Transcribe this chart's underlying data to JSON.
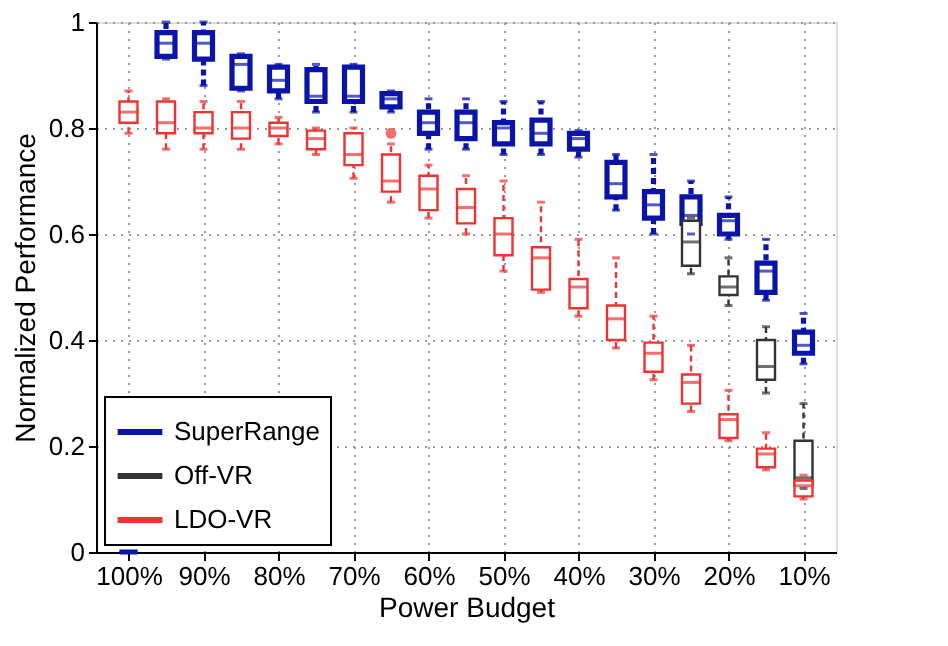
{
  "chart_data": {
    "type": "box",
    "xlabel": "Power Budget",
    "ylabel": "Normalized Performance",
    "categories": [
      "100%",
      null,
      "90%",
      null,
      "80%",
      null,
      "70%",
      null,
      "60%",
      null,
      "50%",
      null,
      "40%",
      null,
      "30%",
      null,
      "20%",
      null,
      "10%"
    ],
    "ylim": [
      0,
      1
    ],
    "yticks": [
      0,
      0.2,
      0.4,
      0.6,
      0.8,
      1
    ],
    "grid": true,
    "legend": "bottom left",
    "series": [
      {
        "name": "SuperRange",
        "color": "#0a14a8",
        "boxes": [
          {
            "low": 0,
            "q1": 0,
            "median": 0,
            "q3": 0,
            "high": 0
          },
          {
            "low": 0.93,
            "q1": 0.935,
            "median": 0.96,
            "q3": 0.98,
            "high": 1.0
          },
          {
            "low": 0.88,
            "q1": 0.93,
            "median": 0.96,
            "q3": 0.98,
            "high": 1.0
          },
          {
            "low": 0.87,
            "q1": 0.875,
            "median": 0.92,
            "q3": 0.935,
            "high": 0.94
          },
          {
            "low": 0.855,
            "q1": 0.87,
            "median": 0.89,
            "q3": 0.915,
            "high": 0.92
          },
          {
            "low": 0.83,
            "q1": 0.85,
            "median": 0.86,
            "q3": 0.91,
            "high": 0.92
          },
          {
            "low": 0.83,
            "q1": 0.85,
            "median": 0.86,
            "q3": 0.915,
            "high": 0.92
          },
          {
            "low": 0.83,
            "q1": 0.84,
            "median": 0.855,
            "q3": 0.865,
            "high": 0.87
          },
          {
            "low": 0.76,
            "q1": 0.79,
            "median": 0.81,
            "q3": 0.83,
            "high": 0.855
          },
          {
            "low": 0.76,
            "q1": 0.78,
            "median": 0.81,
            "q3": 0.83,
            "high": 0.855
          },
          {
            "low": 0.75,
            "q1": 0.77,
            "median": 0.8,
            "q3": 0.81,
            "high": 0.85
          },
          {
            "low": 0.75,
            "q1": 0.77,
            "median": 0.79,
            "q3": 0.815,
            "high": 0.85
          },
          {
            "low": 0.745,
            "q1": 0.76,
            "median": 0.78,
            "q3": 0.79,
            "high": 0.795
          },
          {
            "low": 0.645,
            "q1": 0.67,
            "median": 0.695,
            "q3": 0.735,
            "high": 0.75
          },
          {
            "low": 0.6,
            "q1": 0.63,
            "median": 0.655,
            "q3": 0.68,
            "high": 0.75
          },
          {
            "low": 0.6,
            "q1": 0.62,
            "median": 0.635,
            "q3": 0.67,
            "high": 0.7
          },
          {
            "low": 0.59,
            "q1": 0.6,
            "median": 0.625,
            "q3": 0.635,
            "high": 0.67
          },
          {
            "low": 0.475,
            "q1": 0.49,
            "median": 0.53,
            "q3": 0.545,
            "high": 0.59
          },
          {
            "low": 0.355,
            "q1": 0.375,
            "median": 0.39,
            "q3": 0.415,
            "high": 0.45
          }
        ]
      },
      {
        "name": "Off-VR",
        "color": "#333333",
        "boxes": [
          null,
          null,
          null,
          null,
          null,
          null,
          null,
          null,
          null,
          null,
          null,
          null,
          null,
          null,
          null,
          {
            "low": 0.525,
            "q1": 0.54,
            "median": 0.585,
            "q3": 0.625,
            "high": 0.63
          },
          {
            "low": 0.465,
            "q1": 0.485,
            "median": 0.5,
            "q3": 0.52,
            "high": 0.555
          },
          {
            "low": 0.3,
            "q1": 0.325,
            "median": 0.35,
            "q3": 0.4,
            "high": 0.425
          },
          {
            "low": 0.12,
            "q1": 0.125,
            "median": 0.14,
            "q3": 0.21,
            "high": 0.28
          }
        ]
      },
      {
        "name": "LDO-VR",
        "color": "#ee3333",
        "boxes": [
          {
            "low": 0.79,
            "q1": 0.81,
            "median": 0.83,
            "q3": 0.85,
            "high": 0.87
          },
          {
            "low": 0.76,
            "q1": 0.79,
            "median": 0.81,
            "q3": 0.85,
            "high": 0.855
          },
          {
            "low": 0.76,
            "q1": 0.79,
            "median": 0.8,
            "q3": 0.83,
            "high": 0.85
          },
          {
            "low": 0.76,
            "q1": 0.78,
            "median": 0.8,
            "q3": 0.83,
            "high": 0.85
          },
          {
            "low": 0.77,
            "q1": 0.785,
            "median": 0.8,
            "q3": 0.81,
            "high": 0.82
          },
          {
            "low": 0.75,
            "q1": 0.76,
            "median": 0.78,
            "q3": 0.795,
            "high": 0.8
          },
          {
            "low": 0.705,
            "q1": 0.73,
            "median": 0.75,
            "q3": 0.79,
            "high": 0.8
          },
          {
            "low": 0.66,
            "q1": 0.68,
            "median": 0.7,
            "q3": 0.75,
            "high": 0.77,
            "outliers": [
              0.79
            ]
          },
          {
            "low": 0.63,
            "q1": 0.645,
            "median": 0.685,
            "q3": 0.71,
            "high": 0.73
          },
          {
            "low": 0.6,
            "q1": 0.62,
            "median": 0.65,
            "q3": 0.685,
            "high": 0.71
          },
          {
            "low": 0.53,
            "q1": 0.56,
            "median": 0.6,
            "q3": 0.63,
            "high": 0.7
          },
          {
            "low": 0.49,
            "q1": 0.495,
            "median": 0.555,
            "q3": 0.575,
            "high": 0.66
          },
          {
            "low": 0.445,
            "q1": 0.46,
            "median": 0.5,
            "q3": 0.515,
            "high": 0.59
          },
          {
            "low": 0.385,
            "q1": 0.4,
            "median": 0.44,
            "q3": 0.465,
            "high": 0.555
          },
          {
            "low": 0.325,
            "q1": 0.34,
            "median": 0.375,
            "q3": 0.395,
            "high": 0.445
          },
          {
            "low": 0.265,
            "q1": 0.28,
            "median": 0.32,
            "q3": 0.335,
            "high": 0.39
          },
          {
            "low": 0.21,
            "q1": 0.215,
            "median": 0.25,
            "q3": 0.26,
            "high": 0.305
          },
          {
            "low": 0.155,
            "q1": 0.16,
            "median": 0.185,
            "q3": 0.195,
            "high": 0.225
          },
          {
            "low": 0.1,
            "q1": 0.105,
            "median": 0.125,
            "q3": 0.135,
            "high": 0.145
          }
        ]
      }
    ]
  }
}
